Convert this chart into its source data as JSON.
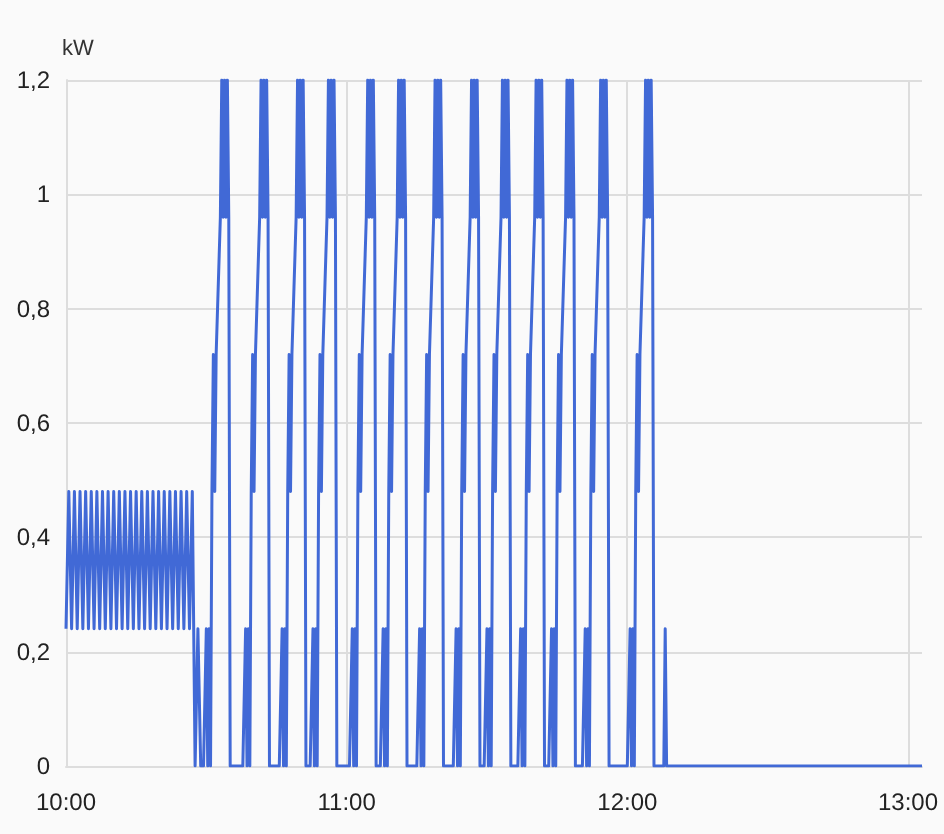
{
  "chart_data": {
    "type": "line",
    "ylabel": "kW",
    "color": "#4169d6",
    "marker": "none",
    "grid": true,
    "xlim": [
      10,
      13.05
    ],
    "xticks": [
      {
        "value": 10,
        "label": "10:00"
      },
      {
        "value": 11,
        "label": "11:00"
      },
      {
        "value": 12,
        "label": "12:00"
      },
      {
        "value": 13,
        "label": "13:00"
      }
    ],
    "ylim": [
      0,
      1.2
    ],
    "yticks": [
      0,
      {
        "value": 0.2,
        "label": "0,2"
      },
      {
        "value": 0.4,
        "label": "0,4"
      },
      {
        "value": 0.6,
        "label": "0,6"
      },
      {
        "value": 0.8,
        "label": "0,8"
      },
      1,
      {
        "value": 1.2,
        "label": "1,2"
      }
    ],
    "x": [
      10,
      10.01,
      10.02,
      10.03,
      10.04,
      10.05,
      10.06,
      10.07,
      10.08,
      10.09,
      10.1,
      10.11,
      10.12,
      10.13,
      10.14,
      10.15,
      10.16,
      10.17,
      10.18,
      10.19,
      10.2,
      10.21,
      10.22,
      10.23,
      10.24,
      10.25,
      10.26,
      10.27,
      10.28,
      10.29,
      10.3,
      10.31,
      10.32,
      10.33,
      10.34,
      10.35,
      10.36,
      10.37,
      10.38,
      10.39,
      10.4,
      10.41,
      10.42,
      10.43,
      10.44,
      10.45,
      10.46,
      10.47,
      10.48,
      10.49,
      10.5,
      10.505,
      10.51,
      10.515,
      10.52,
      10.525,
      10.53,
      10.535,
      10.55,
      10.555,
      10.56,
      10.565,
      10.57,
      10.575,
      10.58,
      10.585,
      10.63,
      10.64,
      10.645,
      10.65,
      10.655,
      10.66,
      10.665,
      10.67,
      10.675,
      10.69,
      10.695,
      10.7,
      10.705,
      10.71,
      10.715,
      10.72,
      10.725,
      10.76,
      10.77,
      10.775,
      10.78,
      10.785,
      10.79,
      10.795,
      10.8,
      10.805,
      10.82,
      10.825,
      10.83,
      10.835,
      10.84,
      10.845,
      10.85,
      10.855,
      10.87,
      10.88,
      10.885,
      10.89,
      10.895,
      10.9,
      10.905,
      10.91,
      10.915,
      10.93,
      10.935,
      10.94,
      10.945,
      10.95,
      10.955,
      10.96,
      10.965,
      11.01,
      11.02,
      11.025,
      11.03,
      11.035,
      11.04,
      11.045,
      11.05,
      11.055,
      11.07,
      11.075,
      11.08,
      11.085,
      11.09,
      11.095,
      11.1,
      11.105,
      11.12,
      11.13,
      11.135,
      11.14,
      11.145,
      11.15,
      11.155,
      11.16,
      11.165,
      11.18,
      11.185,
      11.19,
      11.195,
      11.2,
      11.205,
      11.21,
      11.215,
      11.25,
      11.26,
      11.265,
      11.27,
      11.275,
      11.28,
      11.285,
      11.29,
      11.295,
      11.31,
      11.315,
      11.32,
      11.325,
      11.33,
      11.335,
      11.34,
      11.345,
      11.38,
      11.39,
      11.395,
      11.4,
      11.405,
      11.41,
      11.415,
      11.42,
      11.425,
      11.44,
      11.445,
      11.45,
      11.455,
      11.46,
      11.465,
      11.47,
      11.475,
      11.49,
      11.5,
      11.505,
      11.51,
      11.515,
      11.52,
      11.525,
      11.53,
      11.535,
      11.55,
      11.555,
      11.56,
      11.565,
      11.57,
      11.575,
      11.58,
      11.585,
      11.61,
      11.62,
      11.625,
      11.63,
      11.635,
      11.64,
      11.645,
      11.65,
      11.655,
      11.67,
      11.675,
      11.68,
      11.685,
      11.69,
      11.695,
      11.7,
      11.705,
      11.72,
      11.73,
      11.735,
      11.74,
      11.745,
      11.75,
      11.755,
      11.76,
      11.765,
      11.78,
      11.785,
      11.79,
      11.795,
      11.8,
      11.805,
      11.81,
      11.815,
      11.84,
      11.85,
      11.855,
      11.86,
      11.865,
      11.87,
      11.875,
      11.88,
      11.885,
      11.9,
      11.905,
      11.91,
      11.915,
      11.92,
      11.925,
      11.93,
      11.935,
      12,
      12.01,
      12.015,
      12.02,
      12.025,
      12.03,
      12.035,
      12.04,
      12.045,
      12.06,
      12.065,
      12.07,
      12.075,
      12.08,
      12.085,
      12.09,
      12.095,
      12.13,
      12.135,
      12.14,
      13.05
    ],
    "values": [
      0.24,
      0.48,
      0.24,
      0.48,
      0.24,
      0.48,
      0.24,
      0.48,
      0.24,
      0.48,
      0.24,
      0.48,
      0.24,
      0.48,
      0.24,
      0.48,
      0.24,
      0.48,
      0.24,
      0.48,
      0.24,
      0.48,
      0.24,
      0.48,
      0.24,
      0.48,
      0.24,
      0.48,
      0.24,
      0.48,
      0.24,
      0.48,
      0.24,
      0.48,
      0.24,
      0.48,
      0.24,
      0.48,
      0.24,
      0.48,
      0.24,
      0.48,
      0.24,
      0.48,
      0.24,
      0.48,
      0,
      0.24,
      0,
      0,
      0.24,
      0,
      0.24,
      0,
      0.48,
      0.72,
      0.48,
      0.72,
      0.96,
      1.2,
      0.96,
      1.2,
      0.96,
      1.2,
      0.96,
      0,
      0,
      0.24,
      0,
      0.24,
      0,
      0.48,
      0.72,
      0.48,
      0.72,
      0.96,
      1.2,
      0.96,
      1.2,
      0.96,
      1.2,
      0.96,
      0,
      0,
      0.24,
      0,
      0.24,
      0,
      0.48,
      0.72,
      0.48,
      0.72,
      0.96,
      1.2,
      0.96,
      1.2,
      0.96,
      1.2,
      0.96,
      0,
      0,
      0.24,
      0,
      0.24,
      0,
      0.48,
      0.72,
      0.48,
      0.72,
      0.96,
      1.2,
      0.96,
      1.2,
      0.96,
      1.2,
      0.96,
      0,
      0,
      0.24,
      0,
      0.24,
      0,
      0.48,
      0.72,
      0.48,
      0.72,
      0.96,
      1.2,
      0.96,
      1.2,
      0.96,
      1.2,
      0.96,
      0,
      0,
      0.24,
      0,
      0.24,
      0,
      0.48,
      0.72,
      0.48,
      0.72,
      0.96,
      1.2,
      0.96,
      1.2,
      0.96,
      1.2,
      0.96,
      0,
      0,
      0.24,
      0,
      0.24,
      0,
      0.48,
      0.72,
      0.48,
      0.72,
      0.96,
      1.2,
      0.96,
      1.2,
      0.96,
      1.2,
      0.96,
      0,
      0,
      0.24,
      0,
      0.24,
      0,
      0.48,
      0.72,
      0.48,
      0.72,
      0.96,
      1.2,
      0.96,
      1.2,
      0.96,
      1.2,
      0.96,
      0,
      0,
      0.24,
      0,
      0.24,
      0,
      0.48,
      0.72,
      0.48,
      0.72,
      0.96,
      1.2,
      0.96,
      1.2,
      0.96,
      1.2,
      0.96,
      0,
      0,
      0.24,
      0,
      0.24,
      0,
      0.48,
      0.72,
      0.48,
      0.72,
      0.96,
      1.2,
      0.96,
      1.2,
      0.96,
      1.2,
      0.96,
      0,
      0,
      0.24,
      0,
      0.24,
      0,
      0.48,
      0.72,
      0.48,
      0.72,
      0.96,
      1.2,
      0.96,
      1.2,
      0.96,
      1.2,
      0.96,
      0,
      0,
      0.24,
      0,
      0.24,
      0,
      0.48,
      0.72,
      0.48,
      0.72,
      0.96,
      1.2,
      0.96,
      1.2,
      0.96,
      1.2,
      0.96,
      0,
      0,
      0.24,
      0,
      0.24,
      0,
      0.48,
      0.72,
      0.48,
      0.72,
      0.96,
      1.2,
      0.96,
      1.2,
      0.96,
      1.2,
      0.96,
      0,
      0,
      0.24,
      0,
      0
    ]
  }
}
